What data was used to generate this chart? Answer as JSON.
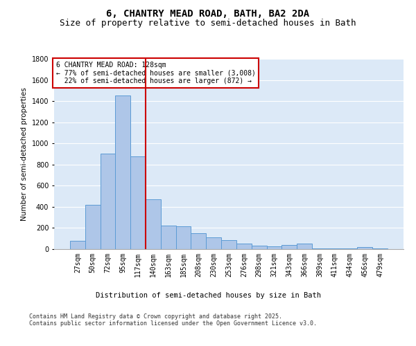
{
  "title": "6, CHANTRY MEAD ROAD, BATH, BA2 2DA",
  "subtitle": "Size of property relative to semi-detached houses in Bath",
  "xlabel": "Distribution of semi-detached houses by size in Bath",
  "ylabel": "Number of semi-detached properties",
  "categories": [
    "27sqm",
    "50sqm",
    "72sqm",
    "95sqm",
    "117sqm",
    "140sqm",
    "163sqm",
    "185sqm",
    "208sqm",
    "230sqm",
    "253sqm",
    "276sqm",
    "298sqm",
    "321sqm",
    "343sqm",
    "366sqm",
    "389sqm",
    "411sqm",
    "434sqm",
    "456sqm",
    "479sqm"
  ],
  "values": [
    80,
    420,
    900,
    1450,
    880,
    470,
    220,
    215,
    150,
    110,
    85,
    50,
    35,
    25,
    40,
    50,
    8,
    8,
    5,
    20,
    5
  ],
  "bar_color": "#aec6e8",
  "bar_edgecolor": "#5b9bd5",
  "background_color": "#dce9f7",
  "vline_x": 4.5,
  "vline_color": "#cc0000",
  "annotation_box_text": "6 CHANTRY MEAD ROAD: 128sqm\n← 77% of semi-detached houses are smaller (3,008)\n  22% of semi-detached houses are larger (872) →",
  "annotation_box_edgecolor": "#cc0000",
  "ylim": [
    0,
    1800
  ],
  "yticks": [
    0,
    200,
    400,
    600,
    800,
    1000,
    1200,
    1400,
    1600,
    1800
  ],
  "footer": "Contains HM Land Registry data © Crown copyright and database right 2025.\nContains public sector information licensed under the Open Government Licence v3.0.",
  "title_fontsize": 10,
  "subtitle_fontsize": 9,
  "label_fontsize": 7.5,
  "tick_fontsize": 7,
  "annotation_fontsize": 7,
  "footer_fontsize": 6
}
